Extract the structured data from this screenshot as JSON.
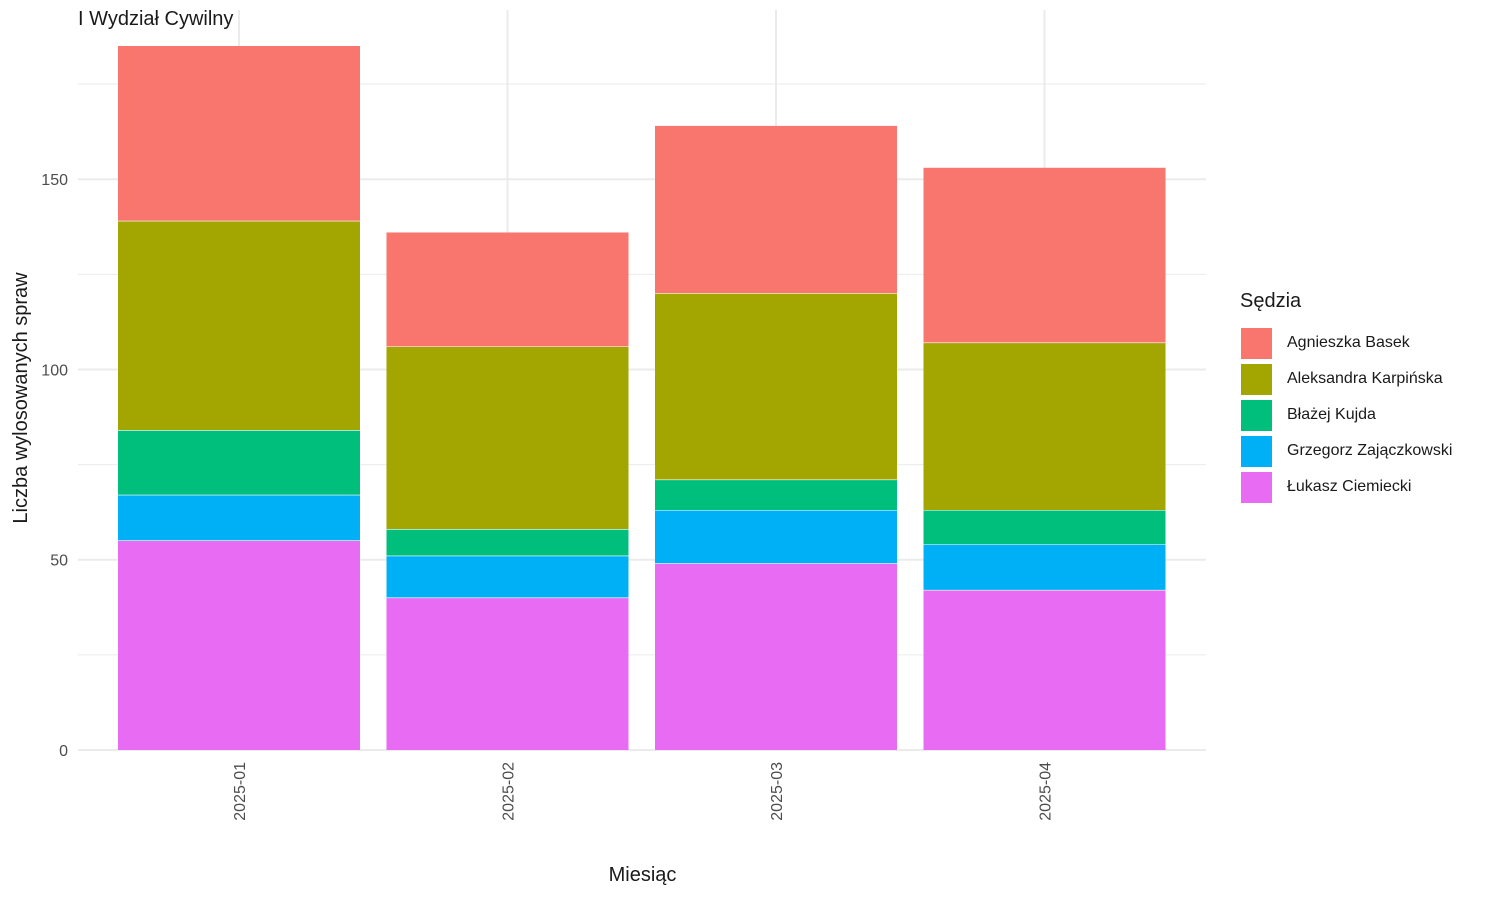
{
  "chart_data": {
    "type": "bar",
    "stacked": true,
    "subtitle": "I Wydział Cywilny",
    "xlabel": "Miesiąc",
    "ylabel": "Liczba wylosowanych spraw",
    "categories": [
      "2025-01",
      "2025-02",
      "2025-03",
      "2025-04"
    ],
    "ylim": [
      0,
      185
    ],
    "yticks": [
      0,
      50,
      100,
      150
    ],
    "grid": true,
    "legend": {
      "title": "Sędzia",
      "position": "right"
    },
    "series": [
      {
        "name": "Agnieszka Basek",
        "color": "#F8766D",
        "values": [
          46,
          30,
          44,
          46
        ]
      },
      {
        "name": "Aleksandra Karpińska",
        "color": "#A3A500",
        "values": [
          55,
          48,
          49,
          44
        ]
      },
      {
        "name": "Błażej Kujda",
        "color": "#00BF7D",
        "values": [
          17,
          7,
          8,
          9
        ]
      },
      {
        "name": "Grzegorz Zajączkowski",
        "color": "#00B0F6",
        "values": [
          12,
          11,
          14,
          12
        ]
      },
      {
        "name": "Łukasz Ciemiecki",
        "color": "#E76BF3",
        "values": [
          55,
          40,
          49,
          42
        ]
      }
    ]
  }
}
